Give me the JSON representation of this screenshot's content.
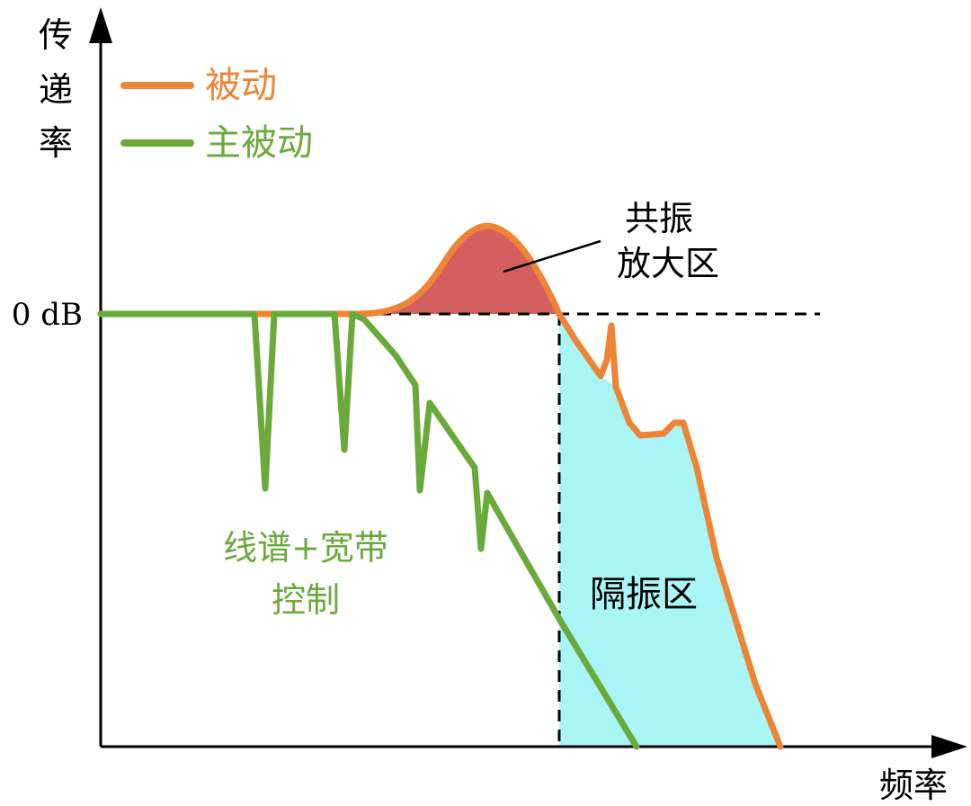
{
  "labels": {
    "y_axis_chars": [
      "传",
      "递",
      "率"
    ],
    "x_axis": "频率",
    "zero_db": "0 dB",
    "legend_passive": "被动",
    "legend_active_passive": "主被动",
    "resonance_line1": "共振",
    "resonance_line2": "放大区",
    "isolation": "隔振区",
    "control_line1": "线谱+宽带",
    "control_line2": "控制"
  },
  "colors": {
    "passive": "#ee8434",
    "active_passive": "#6aaa3a",
    "resonance_fill": "#d45f5f",
    "isolation_fill": "#aaf6f6",
    "axis": "#000000",
    "text": "#000000"
  }
}
